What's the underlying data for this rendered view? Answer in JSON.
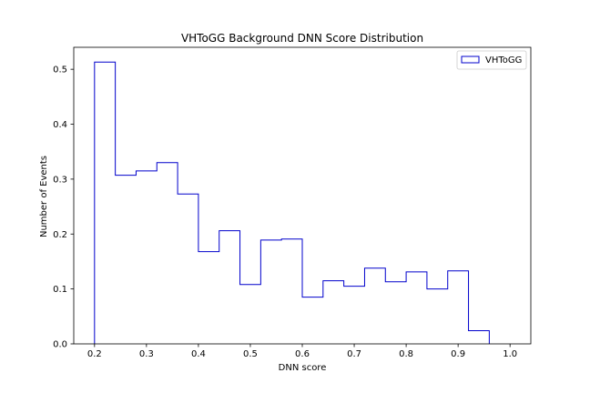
{
  "chart_data": {
    "type": "bar",
    "histtype": "step",
    "title": "VHToGG Background DNN Score Distribution",
    "xlabel": "DNN score",
    "ylabel": "Number of Events",
    "xlim": [
      0.16,
      1.04
    ],
    "ylim": [
      0,
      0.54
    ],
    "xticks": [
      0.2,
      0.3,
      0.4,
      0.5,
      0.6,
      0.7,
      0.8,
      0.9,
      1.0
    ],
    "xtick_labels": [
      "0.2",
      "0.3",
      "0.4",
      "0.5",
      "0.6",
      "0.7",
      "0.8",
      "0.9",
      "1.0"
    ],
    "yticks": [
      0.0,
      0.1,
      0.2,
      0.3,
      0.4,
      0.5
    ],
    "ytick_labels": [
      "0.0",
      "0.1",
      "0.2",
      "0.3",
      "0.4",
      "0.5"
    ],
    "grid": false,
    "legend_position": "top-right",
    "bin_edges": [
      0.2,
      0.24,
      0.28,
      0.32,
      0.36,
      0.4,
      0.44,
      0.48,
      0.52,
      0.56,
      0.6,
      0.64,
      0.68,
      0.72,
      0.76,
      0.8,
      0.84,
      0.88,
      0.92,
      0.96
    ],
    "series": [
      {
        "name": "VHToGG",
        "color": "#0000cc",
        "values": [
          0.513,
          0.307,
          0.315,
          0.33,
          0.273,
          0.168,
          0.206,
          0.108,
          0.189,
          0.191,
          0.085,
          0.115,
          0.105,
          0.138,
          0.113,
          0.131,
          0.1,
          0.133,
          0.024
        ]
      }
    ]
  }
}
